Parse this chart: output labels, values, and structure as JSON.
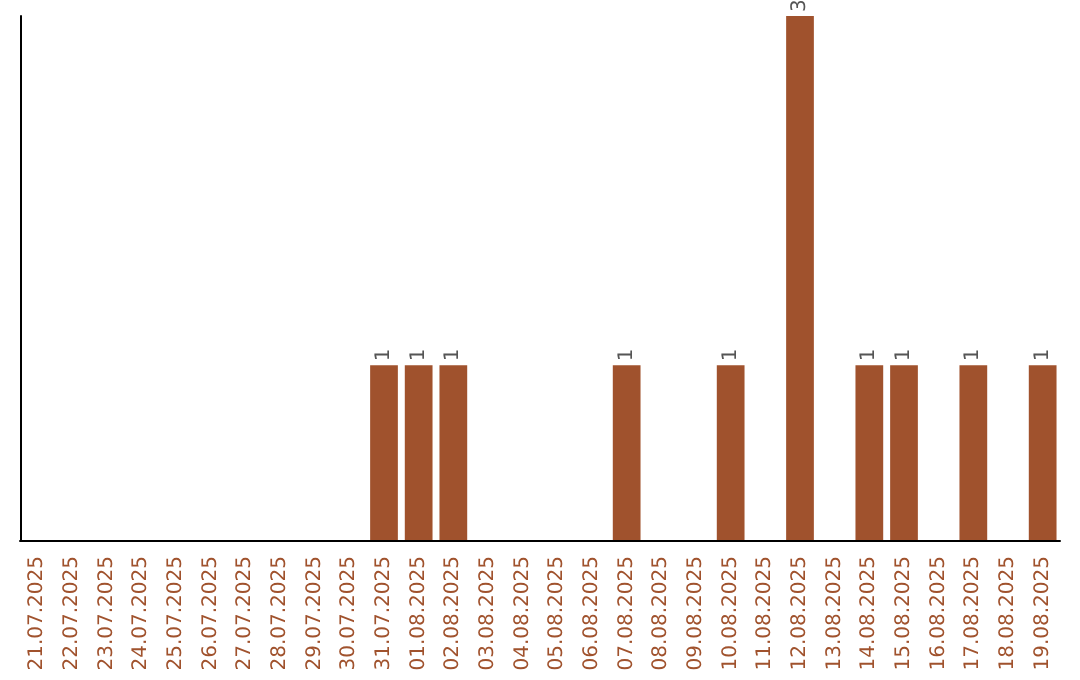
{
  "chart_data": {
    "type": "bar",
    "categories": [
      "21.07.2025",
      "22.07.2025",
      "23.07.2025",
      "24.07.2025",
      "25.07.2025",
      "26.07.2025",
      "27.07.2025",
      "28.07.2025",
      "29.07.2025",
      "30.07.2025",
      "31.07.2025",
      "01.08.2025",
      "02.08.2025",
      "03.08.2025",
      "04.08.2025",
      "05.08.2025",
      "06.08.2025",
      "07.08.2025",
      "08.08.2025",
      "09.08.2025",
      "10.08.2025",
      "11.08.2025",
      "12.08.2025",
      "13.08.2025",
      "14.08.2025",
      "15.08.2025",
      "16.08.2025",
      "17.08.2025",
      "18.08.2025",
      "19.08.2025"
    ],
    "values": [
      0,
      0,
      0,
      0,
      0,
      0,
      0,
      0,
      0,
      0,
      1,
      1,
      1,
      0,
      0,
      0,
      0,
      1,
      0,
      0,
      1,
      0,
      3,
      0,
      1,
      1,
      0,
      1,
      0,
      1
    ],
    "value_labels": [
      null,
      null,
      null,
      null,
      null,
      null,
      null,
      null,
      null,
      null,
      "1",
      "1",
      "1",
      null,
      null,
      null,
      null,
      "1",
      null,
      null,
      "1",
      null,
      "3",
      null,
      "1",
      "1",
      null,
      "1",
      null,
      "1"
    ],
    "color": "#a0522d"
  }
}
